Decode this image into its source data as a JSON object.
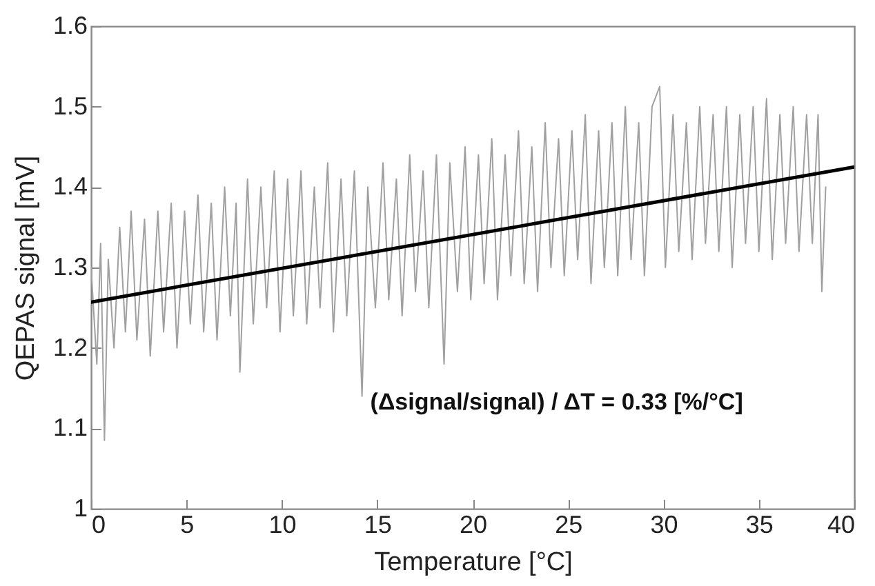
{
  "chart_data": {
    "type": "line",
    "xlabel": "Temperature [°C]",
    "ylabel": "QEPAS signal [mV]",
    "xlim": [
      0,
      40
    ],
    "ylim": [
      1,
      1.6
    ],
    "xticks": [
      0,
      5,
      10,
      15,
      20,
      25,
      30,
      35,
      40
    ],
    "yticks": [
      1,
      1.1,
      1.2,
      1.3,
      1.4,
      1.5,
      1.6
    ],
    "grid": false,
    "marker": "none",
    "annotations": [
      "(Δsignal/signal) / ΔT = 0.33 [%/°C]"
    ],
    "series": [
      {
        "color": "#a0a0a0",
        "x": [
          0,
          0.3,
          0.5,
          0.7,
          0.9,
          1.2,
          1.5,
          1.8,
          2.1,
          2.4,
          2.8,
          3.1,
          3.5,
          3.8,
          4.2,
          4.5,
          4.9,
          5.2,
          5.6,
          5.9,
          6.3,
          6.6,
          7.0,
          7.3,
          7.6,
          7.8,
          8.2,
          8.5,
          8.9,
          9.2,
          9.6,
          9.9,
          10.3,
          10.6,
          11.0,
          11.3,
          11.7,
          12.0,
          12.4,
          12.7,
          13.1,
          13.4,
          13.8,
          14.2,
          14.5,
          14.9,
          15.3,
          15.6,
          16.0,
          16.3,
          16.7,
          17.0,
          17.4,
          17.7,
          18.1,
          18.5,
          18.8,
          19.2,
          19.6,
          19.9,
          20.3,
          20.6,
          21.0,
          21.3,
          21.7,
          22.0,
          22.4,
          22.7,
          23.1,
          23.4,
          23.8,
          24.1,
          24.5,
          24.8,
          25.2,
          25.5,
          25.9,
          26.2,
          26.6,
          26.9,
          27.3,
          27.6,
          28.0,
          28.3,
          28.7,
          29.0,
          29.4,
          29.8,
          30.1,
          30.5,
          30.8,
          31.2,
          31.5,
          31.9,
          32.2,
          32.6,
          32.9,
          33.3,
          33.6,
          34.0,
          34.3,
          34.7,
          35.0,
          35.4,
          35.7,
          36.1,
          36.4,
          36.8,
          37.1,
          37.5,
          37.8,
          38.1,
          38.3,
          38.5
        ],
        "values": [
          1.3,
          1.18,
          1.33,
          1.085,
          1.31,
          1.2,
          1.35,
          1.22,
          1.37,
          1.21,
          1.36,
          1.19,
          1.37,
          1.22,
          1.38,
          1.2,
          1.37,
          1.23,
          1.39,
          1.22,
          1.38,
          1.21,
          1.4,
          1.24,
          1.38,
          1.17,
          1.41,
          1.23,
          1.4,
          1.25,
          1.42,
          1.22,
          1.41,
          1.24,
          1.42,
          1.23,
          1.4,
          1.25,
          1.43,
          1.22,
          1.41,
          1.24,
          1.42,
          1.14,
          1.4,
          1.25,
          1.43,
          1.26,
          1.41,
          1.24,
          1.44,
          1.27,
          1.42,
          1.25,
          1.44,
          1.18,
          1.43,
          1.27,
          1.45,
          1.26,
          1.44,
          1.28,
          1.46,
          1.26,
          1.44,
          1.29,
          1.47,
          1.28,
          1.45,
          1.27,
          1.48,
          1.3,
          1.46,
          1.29,
          1.47,
          1.31,
          1.49,
          1.28,
          1.47,
          1.3,
          1.48,
          1.29,
          1.5,
          1.31,
          1.48,
          1.29,
          1.5,
          1.525,
          1.3,
          1.49,
          1.32,
          1.48,
          1.31,
          1.5,
          1.33,
          1.49,
          1.32,
          1.5,
          1.3,
          1.49,
          1.33,
          1.5,
          1.32,
          1.51,
          1.31,
          1.49,
          1.33,
          1.5,
          1.32,
          1.49,
          1.33,
          1.49,
          1.27,
          1.4
        ]
      },
      {
        "color": "#000000",
        "x": [
          0,
          40
        ],
        "values": [
          1.257,
          1.425
        ]
      }
    ]
  }
}
